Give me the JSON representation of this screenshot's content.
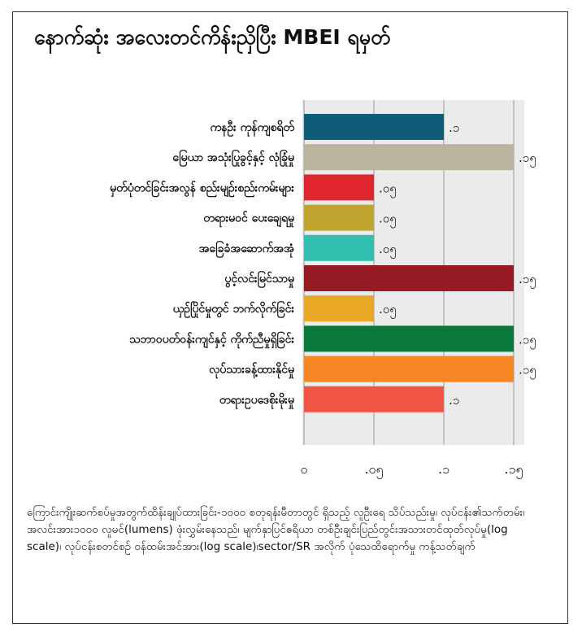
{
  "header": {
    "title": "နောက်ဆုံး အလေးတင်ကိန်းညှိပြီး MBEI ရမှတ်"
  },
  "chart_data": {
    "type": "bar",
    "orientation": "horizontal",
    "title": "နောက်ဆုံး အလေးတင်ကိန်းညှိပြီး MBEI ရမှတ်",
    "categories": [
      "ကနဦး ကုန်ကျစရိတ်",
      "မြေယာ အသုံးပြုခွင့်နှင့် လုံခြုံမှု",
      "မှတ်ပုံတင်ခြင်းအလွန် စည်းမျဉ်းစည်းကမ်းများ",
      "တရားမဝင် ပေးချေရမှု",
      "အခြေခံအဆောက်အအုံ",
      "ပွင့်လင်းမြင်သာမှု",
      "ယှဉ်ပြိုင်မှုတွင် ဘက်လိုက်ခြင်း",
      "သဘာဝပတ်ဝန်းကျင်နှင့် ကိုက်ညီမှုရှိခြင်း",
      "လုပ်သားခန့်ထားနိုင်မှု",
      "တရားဥပဒေစိုးမိုးမှု"
    ],
    "values": [
      0.1,
      0.15,
      0.05,
      0.05,
      0.05,
      0.15,
      0.05,
      0.15,
      0.15,
      0.1
    ],
    "value_labels": [
      ".၁",
      ".၁၅",
      ".၀၅",
      ".၀၅",
      ".၀၅",
      ".၁၅",
      ".၀၅",
      ".၁၅",
      ".၁၅",
      ".၁"
    ],
    "colors": [
      "#0f5c7a",
      "#bab39e",
      "#e0272f",
      "#bfa530",
      "#33bfb0",
      "#961b25",
      "#e8a824",
      "#0a7a3c",
      "#f58623",
      "#f05545"
    ],
    "xlim": [
      0,
      0.15
    ],
    "xticks": [
      0,
      0.05,
      0.1,
      0.15
    ],
    "xtick_labels": [
      "၀",
      ".၀၅",
      ".၁",
      ".၁၅"
    ],
    "grid": true,
    "background": "#ebebeb"
  },
  "footnote": "ကြောင်းကျိုးဆက်စပ်မှုအတွက်ထိန်းချုပ်ထားခြင်း-၁၀၀၀ စတုရန်းမီတာတွင် ရှိသည့် လူဦးရေ သိပ်သည်းမှု၊ လုပ်ငန်း၏သက်တမ်း၊ အလင်းအား၁၀၀၀ လူမင်(lumens) ဖုံးလွှမ်းနေသည်၊ မျက်နှာပြင်ဧရိယာ တစ်ဦးချင်းပြည်တွင်းအသားတင်ထုတ်လုပ်မှု(log scale)၊ လုပ်ငန်းစတင်စဉ် ဝန်ထမ်းအင်အား(log scale)၊sector/SR အလိုက် ပုံသေထိရောက်မှု ကန့်သတ်ချက်"
}
